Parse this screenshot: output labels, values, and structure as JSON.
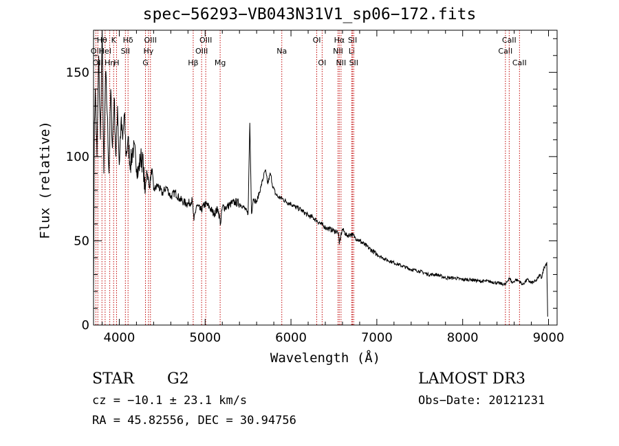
{
  "chart_data": {
    "type": "line",
    "title": "spec−56293−VB043N31V1_sp06−172.fits",
    "xlabel": "Wavelength (Å)",
    "ylabel": "Flux (relative)",
    "xlim": [
      3700,
      9100
    ],
    "ylim": [
      0,
      175
    ],
    "xticks": [
      4000,
      5000,
      6000,
      7000,
      8000,
      9000
    ],
    "yticks": [
      0,
      50,
      100,
      150
    ],
    "x": [
      3700,
      3710,
      3720,
      3740,
      3760,
      3780,
      3800,
      3820,
      3840,
      3860,
      3880,
      3900,
      3920,
      3940,
      3960,
      3980,
      4000,
      4020,
      4040,
      4060,
      4080,
      4100,
      4130,
      4160,
      4190,
      4220,
      4250,
      4280,
      4300,
      4320,
      4350,
      4380,
      4400,
      4450,
      4500,
      4550,
      4600,
      4650,
      4700,
      4750,
      4800,
      4850,
      4870,
      4900,
      4950,
      5000,
      5050,
      5100,
      5150,
      5180,
      5200,
      5250,
      5300,
      5350,
      5400,
      5450,
      5500,
      5520,
      5540,
      5560,
      5600,
      5650,
      5700,
      5730,
      5760,
      5790,
      5820,
      5850,
      5900,
      5950,
      6000,
      6050,
      6100,
      6150,
      6200,
      6250,
      6300,
      6350,
      6400,
      6450,
      6500,
      6550,
      6563,
      6580,
      6600,
      6650,
      6700,
      6750,
      6800,
      6850,
      6900,
      6950,
      7000,
      7100,
      7200,
      7300,
      7400,
      7500,
      7600,
      7700,
      7800,
      7900,
      8000,
      8100,
      8200,
      8300,
      8400,
      8500,
      8540,
      8580,
      8620,
      8660,
      8700,
      8750,
      8800,
      8850,
      8880,
      8900,
      8920,
      8940,
      8960,
      8980,
      8990
    ],
    "y": [
      20,
      120,
      140,
      100,
      160,
      110,
      175,
      90,
      150,
      125,
      90,
      140,
      105,
      135,
      100,
      130,
      95,
      120,
      110,
      125,
      100,
      110,
      95,
      105,
      100,
      90,
      100,
      95,
      78,
      92,
      82,
      93,
      80,
      83,
      78,
      82,
      76,
      79,
      75,
      73,
      72,
      74,
      62,
      71,
      68,
      72,
      70,
      66,
      69,
      60,
      70,
      70,
      72,
      73,
      72,
      70,
      66,
      120,
      66,
      75,
      73,
      82,
      92,
      84,
      90,
      82,
      78,
      76,
      75,
      73,
      72,
      70,
      69,
      67,
      65,
      64,
      62,
      60,
      58,
      57,
      56,
      55,
      48,
      53,
      57,
      53,
      54,
      52,
      50,
      48,
      46,
      44,
      42,
      39,
      37,
      35,
      33,
      32,
      30,
      30,
      28,
      28,
      27,
      27,
      26,
      26,
      25,
      24,
      28,
      25,
      27,
      26,
      24,
      27,
      25,
      26,
      28,
      30,
      28,
      33,
      35,
      37,
      5
    ],
    "lines": [
      {
        "wl": 3727,
        "label": "OII",
        "row": 2
      },
      {
        "wl": 3750,
        "label": "OII",
        "row": 3
      },
      {
        "wl": 3798,
        "label": "Hθ",
        "row": 1
      },
      {
        "wl": 3835,
        "label": "HeI",
        "row": 2
      },
      {
        "wl": 3889,
        "label": "Hη",
        "row": 3
      },
      {
        "wl": 3934,
        "label": "K",
        "row": 1
      },
      {
        "wl": 3968,
        "label": "H",
        "row": 3
      },
      {
        "wl": 4071,
        "label": "SII",
        "row": 2
      },
      {
        "wl": 4102,
        "label": "Hδ",
        "row": 1
      },
      {
        "wl": 4305,
        "label": "G",
        "row": 3
      },
      {
        "wl": 4340,
        "label": "Hγ",
        "row": 2
      },
      {
        "wl": 4363,
        "label": "OIII",
        "row": 1
      },
      {
        "wl": 4861,
        "label": "Hβ",
        "row": 3
      },
      {
        "wl": 4959,
        "label": "OIII",
        "row": 2
      },
      {
        "wl": 5007,
        "label": "OIII",
        "row": 1
      },
      {
        "wl": 5175,
        "label": "Mg",
        "row": 3
      },
      {
        "wl": 5893,
        "label": "Na",
        "row": 2
      },
      {
        "wl": 6300,
        "label": "OI",
        "row": 1
      },
      {
        "wl": 6363,
        "label": "OI",
        "row": 3
      },
      {
        "wl": 6548,
        "label": "NII",
        "row": 2
      },
      {
        "wl": 6563,
        "label": "Hα",
        "row": 1
      },
      {
        "wl": 6583,
        "label": "NII",
        "row": 3
      },
      {
        "wl": 6707,
        "label": "Li",
        "row": 2
      },
      {
        "wl": 6717,
        "label": "SII",
        "row": 1
      },
      {
        "wl": 6731,
        "label": "SII",
        "row": 3
      },
      {
        "wl": 8498,
        "label": "CaII",
        "row": 2
      },
      {
        "wl": 8542,
        "label": "CaII",
        "row": 1
      },
      {
        "wl": 8662,
        "label": "CaII",
        "row": 3
      }
    ]
  },
  "info": {
    "obj_class": "STAR",
    "subclass": "G2",
    "survey": "LAMOST DR3",
    "redshift": "cz = −10.1 ± 23.1 km/s",
    "obs_date": "Obs−Date: 20121231",
    "coords": "RA =  45.82556, DEC =  30.94756"
  },
  "colors": {
    "line_marker": "#c00000",
    "spectrum": "#000000"
  }
}
